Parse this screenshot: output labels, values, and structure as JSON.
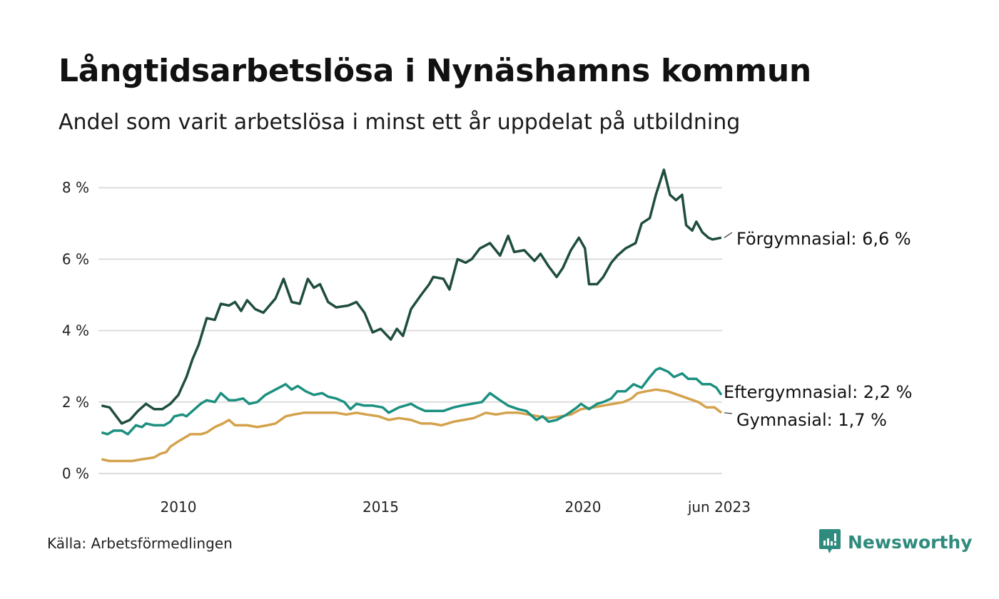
{
  "title": "Långtidsarbetslösa i Nynäshamns kommun",
  "subtitle": "Andel som varit arbetslösa i minst ett år uppdelat på utbildning",
  "source": "Källa: Arbetsförmedlingen",
  "logo": "Newsworthy",
  "colors": {
    "forgymnasial": "#1f4d3f",
    "eftergymnasial": "#1b9080",
    "gymnasial": "#d4a24c",
    "grid": "#dddddd",
    "brand": "#2f8b7d"
  },
  "chart_data": {
    "type": "line",
    "title": "Långtidsarbetslösa i Nynäshamns kommun",
    "xlabel": "",
    "ylabel": "",
    "xlim": [
      2008.0,
      2023.5
    ],
    "ylim": [
      0,
      8.5
    ],
    "grid": true,
    "legend": "direct-labels-right",
    "y_ticks": [
      {
        "value": 0,
        "label": "0 %"
      },
      {
        "value": 2,
        "label": "2 %"
      },
      {
        "value": 4,
        "label": "4 %"
      },
      {
        "value": 6,
        "label": "6 %"
      },
      {
        "value": 8,
        "label": "8 %"
      }
    ],
    "x_ticks": [
      {
        "value": 2010,
        "label": "2010"
      },
      {
        "value": 2015,
        "label": "2015"
      },
      {
        "value": 2020,
        "label": "2020"
      },
      {
        "value": 2023.42,
        "label": "jun 2023"
      }
    ],
    "series": [
      {
        "name": "Förgymnasial",
        "label": "Förgymnasial: 6,6 %",
        "color": "#1f4d3f",
        "points": [
          [
            2008.1,
            1.9
          ],
          [
            2008.3,
            1.85
          ],
          [
            2008.6,
            1.4
          ],
          [
            2008.8,
            1.5
          ],
          [
            2009.0,
            1.75
          ],
          [
            2009.2,
            1.95
          ],
          [
            2009.4,
            1.8
          ],
          [
            2009.6,
            1.8
          ],
          [
            2009.8,
            1.95
          ],
          [
            2010.0,
            2.2
          ],
          [
            2010.2,
            2.7
          ],
          [
            2010.35,
            3.2
          ],
          [
            2010.5,
            3.6
          ],
          [
            2010.7,
            4.35
          ],
          [
            2010.9,
            4.3
          ],
          [
            2011.05,
            4.75
          ],
          [
            2011.25,
            4.7
          ],
          [
            2011.4,
            4.8
          ],
          [
            2011.55,
            4.55
          ],
          [
            2011.7,
            4.85
          ],
          [
            2011.9,
            4.6
          ],
          [
            2012.1,
            4.5
          ],
          [
            2012.4,
            4.9
          ],
          [
            2012.6,
            5.45
          ],
          [
            2012.8,
            4.8
          ],
          [
            2013.0,
            4.75
          ],
          [
            2013.2,
            5.45
          ],
          [
            2013.35,
            5.2
          ],
          [
            2013.5,
            5.3
          ],
          [
            2013.7,
            4.8
          ],
          [
            2013.9,
            4.65
          ],
          [
            2014.2,
            4.7
          ],
          [
            2014.4,
            4.8
          ],
          [
            2014.6,
            4.5
          ],
          [
            2014.8,
            3.95
          ],
          [
            2015.0,
            4.05
          ],
          [
            2015.25,
            3.75
          ],
          [
            2015.4,
            4.05
          ],
          [
            2015.55,
            3.85
          ],
          [
            2015.75,
            4.6
          ],
          [
            2016.0,
            5.0
          ],
          [
            2016.2,
            5.3
          ],
          [
            2016.3,
            5.5
          ],
          [
            2016.55,
            5.45
          ],
          [
            2016.7,
            5.15
          ],
          [
            2016.9,
            6.0
          ],
          [
            2017.1,
            5.9
          ],
          [
            2017.25,
            6.0
          ],
          [
            2017.45,
            6.3
          ],
          [
            2017.7,
            6.45
          ],
          [
            2017.95,
            6.1
          ],
          [
            2018.15,
            6.65
          ],
          [
            2018.3,
            6.2
          ],
          [
            2018.55,
            6.25
          ],
          [
            2018.8,
            5.95
          ],
          [
            2018.95,
            6.15
          ],
          [
            2019.15,
            5.8
          ],
          [
            2019.35,
            5.5
          ],
          [
            2019.5,
            5.75
          ],
          [
            2019.7,
            6.25
          ],
          [
            2019.9,
            6.6
          ],
          [
            2020.05,
            6.3
          ],
          [
            2020.15,
            5.3
          ],
          [
            2020.35,
            5.3
          ],
          [
            2020.5,
            5.5
          ],
          [
            2020.7,
            5.9
          ],
          [
            2020.85,
            6.1
          ],
          [
            2021.05,
            6.3
          ],
          [
            2021.3,
            6.45
          ],
          [
            2021.45,
            7.0
          ],
          [
            2021.65,
            7.15
          ],
          [
            2021.8,
            7.8
          ],
          [
            2021.9,
            8.15
          ],
          [
            2022.0,
            8.5
          ],
          [
            2022.15,
            7.8
          ],
          [
            2022.3,
            7.65
          ],
          [
            2022.45,
            7.8
          ],
          [
            2022.55,
            6.95
          ],
          [
            2022.7,
            6.8
          ],
          [
            2022.8,
            7.05
          ],
          [
            2022.95,
            6.75
          ],
          [
            2023.1,
            6.6
          ],
          [
            2023.2,
            6.55
          ],
          [
            2023.42,
            6.6
          ]
        ]
      },
      {
        "name": "Eftergymnasial",
        "label": "Eftergymnasial: 2,2 %",
        "color": "#1b9080",
        "points": [
          [
            2008.1,
            1.15
          ],
          [
            2008.25,
            1.1
          ],
          [
            2008.4,
            1.2
          ],
          [
            2008.6,
            1.2
          ],
          [
            2008.75,
            1.1
          ],
          [
            2008.95,
            1.35
          ],
          [
            2009.1,
            1.3
          ],
          [
            2009.2,
            1.4
          ],
          [
            2009.4,
            1.35
          ],
          [
            2009.65,
            1.35
          ],
          [
            2009.8,
            1.45
          ],
          [
            2009.9,
            1.6
          ],
          [
            2010.1,
            1.65
          ],
          [
            2010.2,
            1.6
          ],
          [
            2010.35,
            1.75
          ],
          [
            2010.55,
            1.95
          ],
          [
            2010.7,
            2.05
          ],
          [
            2010.9,
            2.0
          ],
          [
            2011.05,
            2.25
          ],
          [
            2011.25,
            2.05
          ],
          [
            2011.4,
            2.05
          ],
          [
            2011.6,
            2.1
          ],
          [
            2011.75,
            1.95
          ],
          [
            2011.95,
            2.0
          ],
          [
            2012.15,
            2.2
          ],
          [
            2012.4,
            2.35
          ],
          [
            2012.65,
            2.5
          ],
          [
            2012.8,
            2.35
          ],
          [
            2012.95,
            2.45
          ],
          [
            2013.15,
            2.3
          ],
          [
            2013.35,
            2.2
          ],
          [
            2013.55,
            2.25
          ],
          [
            2013.7,
            2.15
          ],
          [
            2013.9,
            2.1
          ],
          [
            2014.1,
            2.0
          ],
          [
            2014.25,
            1.8
          ],
          [
            2014.4,
            1.95
          ],
          [
            2014.6,
            1.9
          ],
          [
            2014.8,
            1.9
          ],
          [
            2015.05,
            1.85
          ],
          [
            2015.2,
            1.7
          ],
          [
            2015.45,
            1.85
          ],
          [
            2015.75,
            1.95
          ],
          [
            2015.9,
            1.85
          ],
          [
            2016.1,
            1.75
          ],
          [
            2016.35,
            1.75
          ],
          [
            2016.55,
            1.75
          ],
          [
            2016.8,
            1.85
          ],
          [
            2017.0,
            1.9
          ],
          [
            2017.25,
            1.95
          ],
          [
            2017.5,
            2.0
          ],
          [
            2017.7,
            2.25
          ],
          [
            2017.95,
            2.05
          ],
          [
            2018.15,
            1.9
          ],
          [
            2018.4,
            1.8
          ],
          [
            2018.6,
            1.75
          ],
          [
            2018.85,
            1.5
          ],
          [
            2019.0,
            1.6
          ],
          [
            2019.15,
            1.45
          ],
          [
            2019.35,
            1.5
          ],
          [
            2019.6,
            1.65
          ],
          [
            2019.85,
            1.85
          ],
          [
            2019.95,
            1.95
          ],
          [
            2020.15,
            1.8
          ],
          [
            2020.35,
            1.95
          ],
          [
            2020.5,
            2.0
          ],
          [
            2020.7,
            2.1
          ],
          [
            2020.85,
            2.3
          ],
          [
            2021.05,
            2.3
          ],
          [
            2021.25,
            2.5
          ],
          [
            2021.45,
            2.4
          ],
          [
            2021.65,
            2.7
          ],
          [
            2021.8,
            2.9
          ],
          [
            2021.9,
            2.95
          ],
          [
            2022.1,
            2.85
          ],
          [
            2022.25,
            2.7
          ],
          [
            2022.45,
            2.8
          ],
          [
            2022.6,
            2.65
          ],
          [
            2022.8,
            2.65
          ],
          [
            2022.95,
            2.5
          ],
          [
            2023.15,
            2.5
          ],
          [
            2023.3,
            2.4
          ],
          [
            2023.42,
            2.2
          ]
        ]
      },
      {
        "name": "Gymnasial",
        "label": "Gymnasial: 1,7 %",
        "color": "#d4a24c",
        "points": [
          [
            2008.1,
            0.4
          ],
          [
            2008.3,
            0.35
          ],
          [
            2008.6,
            0.35
          ],
          [
            2008.85,
            0.35
          ],
          [
            2009.1,
            0.4
          ],
          [
            2009.4,
            0.45
          ],
          [
            2009.55,
            0.55
          ],
          [
            2009.7,
            0.6
          ],
          [
            2009.8,
            0.75
          ],
          [
            2010.0,
            0.9
          ],
          [
            2010.15,
            1.0
          ],
          [
            2010.3,
            1.1
          ],
          [
            2010.55,
            1.1
          ],
          [
            2010.7,
            1.15
          ],
          [
            2010.9,
            1.3
          ],
          [
            2011.1,
            1.4
          ],
          [
            2011.25,
            1.5
          ],
          [
            2011.4,
            1.35
          ],
          [
            2011.7,
            1.35
          ],
          [
            2011.95,
            1.3
          ],
          [
            2012.2,
            1.35
          ],
          [
            2012.4,
            1.4
          ],
          [
            2012.65,
            1.6
          ],
          [
            2012.85,
            1.65
          ],
          [
            2013.1,
            1.7
          ],
          [
            2013.35,
            1.7
          ],
          [
            2013.6,
            1.7
          ],
          [
            2013.9,
            1.7
          ],
          [
            2014.15,
            1.65
          ],
          [
            2014.4,
            1.7
          ],
          [
            2014.65,
            1.65
          ],
          [
            2014.95,
            1.6
          ],
          [
            2015.2,
            1.5
          ],
          [
            2015.45,
            1.55
          ],
          [
            2015.75,
            1.5
          ],
          [
            2016.0,
            1.4
          ],
          [
            2016.25,
            1.4
          ],
          [
            2016.5,
            1.35
          ],
          [
            2016.8,
            1.45
          ],
          [
            2017.05,
            1.5
          ],
          [
            2017.3,
            1.55
          ],
          [
            2017.6,
            1.7
          ],
          [
            2017.85,
            1.65
          ],
          [
            2018.1,
            1.7
          ],
          [
            2018.4,
            1.7
          ],
          [
            2018.65,
            1.65
          ],
          [
            2018.9,
            1.6
          ],
          [
            2019.15,
            1.55
          ],
          [
            2019.45,
            1.6
          ],
          [
            2019.7,
            1.65
          ],
          [
            2019.95,
            1.8
          ],
          [
            2020.25,
            1.85
          ],
          [
            2020.5,
            1.9
          ],
          [
            2020.75,
            1.95
          ],
          [
            2021.0,
            2.0
          ],
          [
            2021.2,
            2.1
          ],
          [
            2021.35,
            2.25
          ],
          [
            2021.55,
            2.3
          ],
          [
            2021.8,
            2.35
          ],
          [
            2022.1,
            2.3
          ],
          [
            2022.35,
            2.2
          ],
          [
            2022.6,
            2.1
          ],
          [
            2022.85,
            2.0
          ],
          [
            2023.05,
            1.85
          ],
          [
            2023.25,
            1.85
          ],
          [
            2023.42,
            1.7
          ]
        ]
      }
    ]
  }
}
